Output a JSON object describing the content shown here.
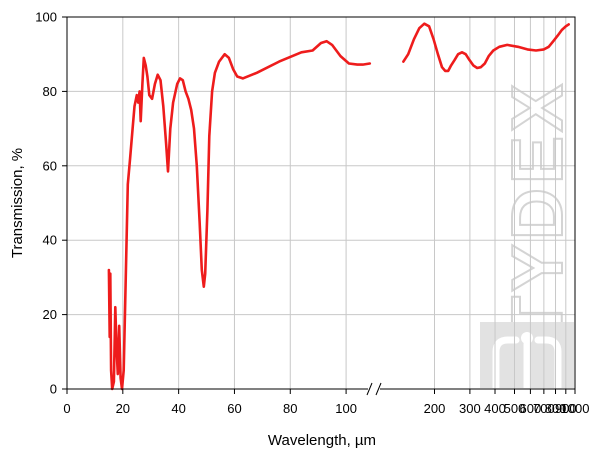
{
  "watermark": "TYDEX",
  "chart_data": {
    "type": "line",
    "title": "",
    "xlabel": "Wavelength, µm",
    "ylabel": "Transmission, %",
    "grid": true,
    "ylim": [
      0,
      100
    ],
    "yticks": [
      "0",
      "20",
      "40",
      "60",
      "80",
      "100"
    ],
    "line_color": "#ee1c1c",
    "axes": [
      {
        "name": "linear",
        "xlim": [
          0,
          110
        ],
        "xticks": [
          "0",
          "20",
          "40",
          "60",
          "80",
          "100"
        ]
      },
      {
        "name": "log",
        "xlim": [
          100,
          1000
        ],
        "xticks": [
          "200",
          "300",
          "400",
          "500",
          "600",
          "700",
          "800",
          "900",
          "1000"
        ]
      }
    ],
    "series": [
      {
        "points": [
          [
            15.0,
            32
          ],
          [
            15.3,
            14
          ],
          [
            15.5,
            31
          ],
          [
            15.8,
            5
          ],
          [
            16.2,
            0
          ],
          [
            16.8,
            2
          ],
          [
            17.3,
            22
          ],
          [
            17.7,
            12
          ],
          [
            18.2,
            4
          ],
          [
            18.7,
            17
          ],
          [
            19.2,
            3
          ],
          [
            19.7,
            0
          ],
          [
            20.3,
            5
          ],
          [
            21.0,
            28
          ],
          [
            21.8,
            55
          ],
          [
            22.6,
            62
          ],
          [
            23.5,
            70
          ],
          [
            24.2,
            76
          ],
          [
            25.0,
            79
          ],
          [
            25.5,
            77
          ],
          [
            26.0,
            80
          ],
          [
            26.4,
            72
          ],
          [
            27.0,
            82
          ],
          [
            27.5,
            89
          ],
          [
            28.2,
            87
          ],
          [
            28.8,
            84
          ],
          [
            29.5,
            79
          ],
          [
            30.5,
            78
          ],
          [
            31.5,
            82
          ],
          [
            32.5,
            84.5
          ],
          [
            33.5,
            83
          ],
          [
            34.5,
            76
          ],
          [
            35.5,
            66
          ],
          [
            36.2,
            58.5
          ],
          [
            37.0,
            70
          ],
          [
            38.0,
            77
          ],
          [
            39.5,
            82
          ],
          [
            40.5,
            83.5
          ],
          [
            41.5,
            83
          ],
          [
            42.5,
            80
          ],
          [
            43.5,
            78
          ],
          [
            44.5,
            75
          ],
          [
            45.5,
            70
          ],
          [
            46.5,
            60
          ],
          [
            47.5,
            45
          ],
          [
            48.3,
            32
          ],
          [
            49.0,
            27.5
          ],
          [
            49.5,
            31
          ],
          [
            50.3,
            48
          ],
          [
            51.0,
            68
          ],
          [
            52.0,
            80
          ],
          [
            53.0,
            85
          ],
          [
            54.5,
            88
          ],
          [
            56.5,
            90
          ],
          [
            58.0,
            89
          ],
          [
            59.5,
            86
          ],
          [
            61.0,
            84
          ],
          [
            63.0,
            83.5
          ],
          [
            68.0,
            85
          ],
          [
            76.0,
            88
          ],
          [
            84.0,
            90.5
          ],
          [
            88.0,
            91
          ],
          [
            91.0,
            93
          ],
          [
            93.0,
            93.5
          ],
          [
            95.0,
            92.5
          ],
          [
            98.0,
            89.5
          ],
          [
            101.0,
            87.5
          ],
          [
            104.0,
            87.2
          ],
          [
            106.0,
            87.2
          ],
          [
            108.5,
            87.5
          ]
        ]
      },
      {
        "points": [
          [
            140,
            88
          ],
          [
            148,
            90
          ],
          [
            158,
            94
          ],
          [
            168,
            97
          ],
          [
            178,
            98.2
          ],
          [
            188,
            97.5
          ],
          [
            198,
            94
          ],
          [
            208,
            90
          ],
          [
            218,
            86.5
          ],
          [
            226,
            85.5
          ],
          [
            234,
            85.5
          ],
          [
            242,
            87
          ],
          [
            252,
            88.5
          ],
          [
            262,
            90
          ],
          [
            274,
            90.5
          ],
          [
            286,
            90
          ],
          [
            298,
            88.5
          ],
          [
            312,
            87
          ],
          [
            326,
            86.3
          ],
          [
            340,
            86.5
          ],
          [
            356,
            87.5
          ],
          [
            372,
            89.5
          ],
          [
            392,
            91
          ],
          [
            420,
            92
          ],
          [
            460,
            92.5
          ],
          [
            520,
            92
          ],
          [
            580,
            91.3
          ],
          [
            640,
            91
          ],
          [
            700,
            91.3
          ],
          [
            740,
            92
          ],
          [
            780,
            93.5
          ],
          [
            820,
            95
          ],
          [
            860,
            96.5
          ],
          [
            900,
            97.5
          ],
          [
            930,
            98
          ]
        ]
      }
    ]
  }
}
